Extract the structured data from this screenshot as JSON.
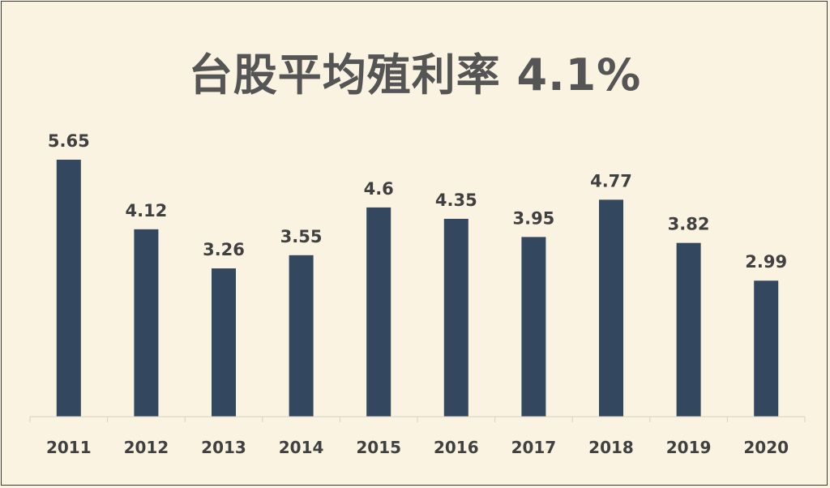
{
  "chart_data": {
    "type": "bar",
    "title": "台股平均殖利率 4.1%",
    "categories": [
      "2011",
      "2012",
      "2013",
      "2014",
      "2015",
      "2016",
      "2017",
      "2018",
      "2019",
      "2020"
    ],
    "values": [
      5.65,
      4.12,
      3.26,
      3.55,
      4.6,
      4.35,
      3.95,
      4.77,
      3.82,
      2.99
    ],
    "xlabel": "",
    "ylabel": "",
    "ylim": [
      0,
      5.65
    ],
    "grid": false,
    "bar_color": "#33475e",
    "background_color": "#faf3e1"
  }
}
